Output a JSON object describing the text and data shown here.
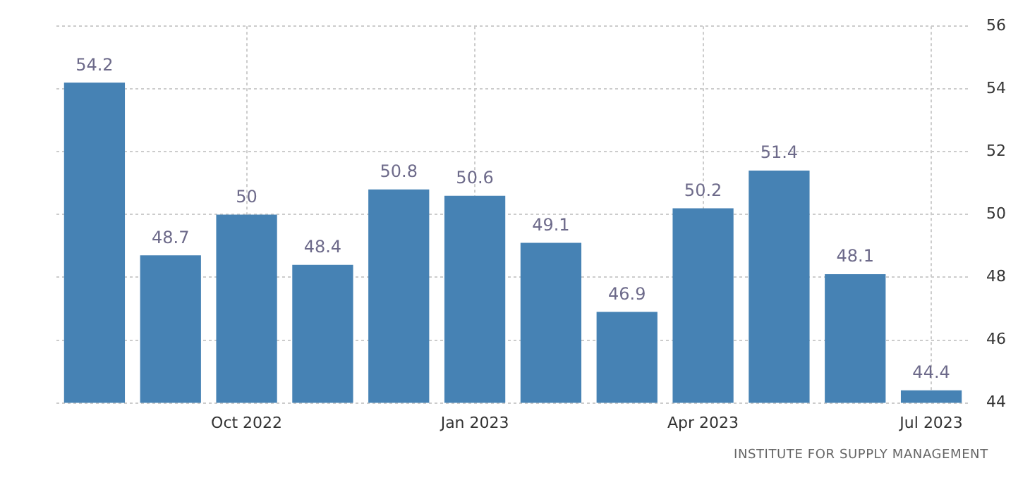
{
  "chart_data": {
    "type": "bar",
    "categories": [
      null,
      null,
      "Oct 2022",
      null,
      null,
      "Jan 2023",
      null,
      null,
      "Apr 2023",
      null,
      null,
      "Jul 2023"
    ],
    "values": [
      54.2,
      48.7,
      50,
      48.4,
      50.8,
      50.6,
      49.1,
      46.9,
      50.2,
      51.4,
      48.1,
      44.4
    ],
    "color": "#4682b4",
    "ylim": [
      44,
      56
    ],
    "yticks": [
      44,
      46,
      48,
      50,
      52,
      54,
      56
    ],
    "grid": true,
    "data_labels": true,
    "legend": false,
    "annotations": [
      "INSTITUTE FOR SUPPLY MANAGEMENT"
    ]
  }
}
